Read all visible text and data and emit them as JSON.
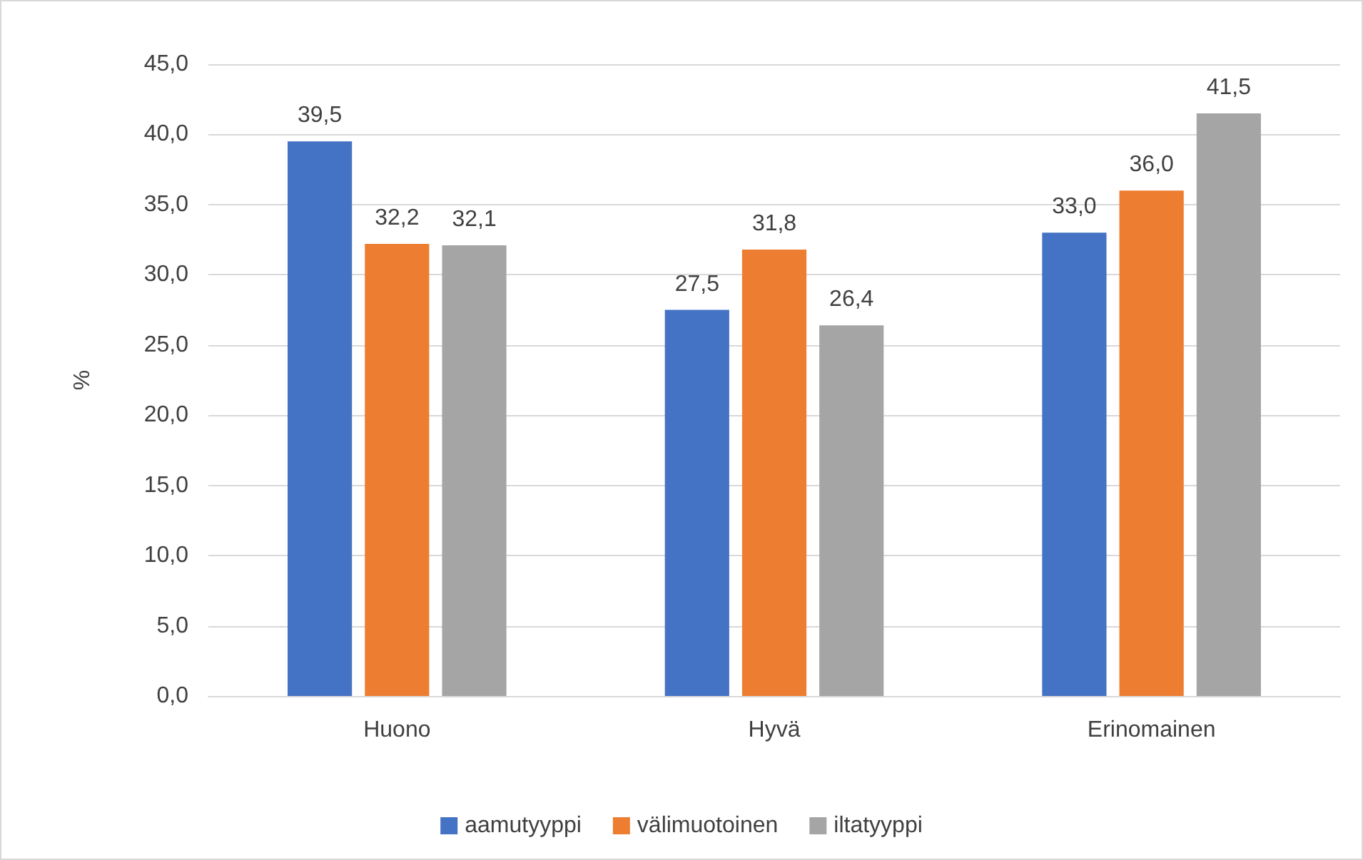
{
  "chart_data": {
    "type": "bar",
    "ylabel": "%",
    "categories": [
      "Huono",
      "Hyvä",
      "Erinomainen"
    ],
    "series": [
      {
        "name": "aamutyyppi",
        "color": "#4472c4",
        "values": [
          39.5,
          27.5,
          33.0
        ],
        "value_labels": [
          "39,5",
          "27,5",
          "33,0"
        ]
      },
      {
        "name": "välimuotoinen",
        "color": "#ed7d31",
        "values": [
          32.2,
          31.8,
          36.0
        ],
        "value_labels": [
          "32,2",
          "31,8",
          "36,0"
        ]
      },
      {
        "name": "iltatyyppi",
        "color": "#a5a5a5",
        "values": [
          32.1,
          26.4,
          41.5
        ],
        "value_labels": [
          "32,1",
          "26,4",
          "41,5"
        ]
      }
    ],
    "ylim": [
      0,
      45
    ],
    "yticks": [
      {
        "value": 0,
        "label": "0,0"
      },
      {
        "value": 5,
        "label": "5,0"
      },
      {
        "value": 10,
        "label": "10,0"
      },
      {
        "value": 15,
        "label": "15,0"
      },
      {
        "value": 20,
        "label": "20,0"
      },
      {
        "value": 25,
        "label": "25,0"
      },
      {
        "value": 30,
        "label": "30,0"
      },
      {
        "value": 35,
        "label": "35,0"
      },
      {
        "value": 40,
        "label": "40,0"
      },
      {
        "value": 45,
        "label": "45,0"
      }
    ],
    "grid": "y",
    "legend": "bottom"
  }
}
